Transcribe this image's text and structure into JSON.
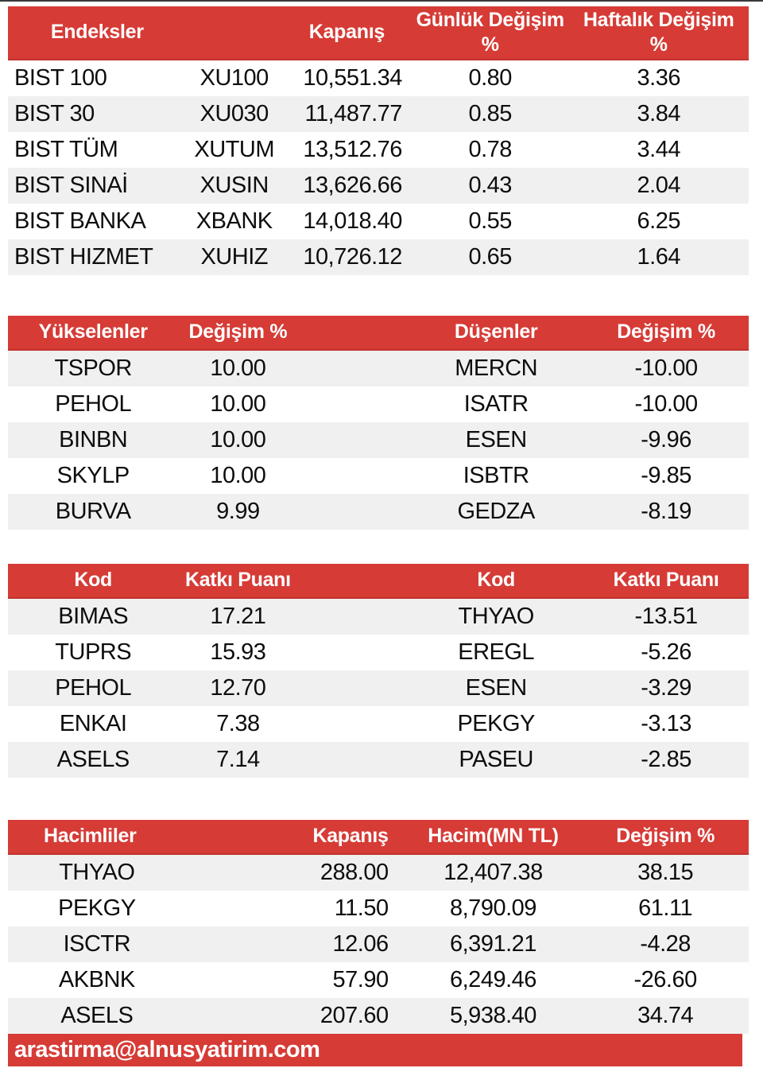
{
  "colors": {
    "header_red": "#d63b36",
    "row_alt_gray": "#f0f0f0",
    "header_text": "#ffffff",
    "body_text": "#0d0d0d"
  },
  "indices_table": {
    "headers": {
      "name": "Endeksler",
      "close": "Kapanış",
      "daily_l1": "Günlük Değişim",
      "daily_l2": "%",
      "weekly_l1": "Haftalık Değişim",
      "weekly_l2": "%"
    },
    "rows": [
      {
        "name": "BIST 100",
        "code": "XU100",
        "close": "10,551.34",
        "daily": "0.80",
        "weekly": "3.36"
      },
      {
        "name": "BIST 30",
        "code": "XU030",
        "close": "11,487.77",
        "daily": "0.85",
        "weekly": "3.84"
      },
      {
        "name": "BIST TÜM",
        "code": "XUTUM",
        "close": "13,512.76",
        "daily": "0.78",
        "weekly": "3.44"
      },
      {
        "name": "BIST SINAİ",
        "code": "XUSIN",
        "close": "13,626.66",
        "daily": "0.43",
        "weekly": "2.04"
      },
      {
        "name": "BIST BANKA",
        "code": "XBANK",
        "close": "14,018.40",
        "daily": "0.55",
        "weekly": "6.25"
      },
      {
        "name": "BIST HIZMET",
        "code": "XUHIZ",
        "close": "10,726.12",
        "daily": "0.65",
        "weekly": "1.64"
      }
    ]
  },
  "movers_table": {
    "headers": {
      "gainers": "Yükselenler",
      "gainers_change": "Değişim %",
      "losers": "Düşenler",
      "losers_change": "Değişim %"
    },
    "rows": [
      {
        "gainer": "TSPOR",
        "gainer_change": "10.00",
        "loser": "MERCN",
        "loser_change": "-10.00"
      },
      {
        "gainer": "PEHOL",
        "gainer_change": "10.00",
        "loser": "ISATR",
        "loser_change": "-10.00"
      },
      {
        "gainer": "BINBN",
        "gainer_change": "10.00",
        "loser": "ESEN",
        "loser_change": "-9.96"
      },
      {
        "gainer": "SKYLP",
        "gainer_change": "10.00",
        "loser": "ISBTR",
        "loser_change": "-9.85"
      },
      {
        "gainer": "BURVA",
        "gainer_change": "9.99",
        "loser": "GEDZA",
        "loser_change": "-8.19"
      }
    ]
  },
  "contribution_table": {
    "headers": {
      "pos_code": "Kod",
      "pos_points": "Katkı Puanı",
      "neg_code": "Kod",
      "neg_points": "Katkı Puanı"
    },
    "rows": [
      {
        "pos_code": "BIMAS",
        "pos_points": "17.21",
        "neg_code": "THYAO",
        "neg_points": "-13.51"
      },
      {
        "pos_code": "TUPRS",
        "pos_points": "15.93",
        "neg_code": "EREGL",
        "neg_points": "-5.26"
      },
      {
        "pos_code": "PEHOL",
        "pos_points": "12.70",
        "neg_code": "ESEN",
        "neg_points": "-3.29"
      },
      {
        "pos_code": "ENKAI",
        "pos_points": "7.38",
        "neg_code": "PEKGY",
        "neg_points": "-3.13"
      },
      {
        "pos_code": "ASELS",
        "pos_points": "7.14",
        "neg_code": "PASEU",
        "neg_points": "-2.85"
      }
    ]
  },
  "volume_table": {
    "headers": {
      "name": "Hacimliler",
      "close": "Kapanış",
      "volume": "Hacim(MN TL)",
      "change": "Değişim %"
    },
    "rows": [
      {
        "code": "THYAO",
        "close": "288.00",
        "volume": "12,407.38",
        "change": "38.15"
      },
      {
        "code": "PEKGY",
        "close": "11.50",
        "volume": "8,790.09",
        "change": "61.11"
      },
      {
        "code": "ISCTR",
        "close": "12.06",
        "volume": "6,391.21",
        "change": "-4.28"
      },
      {
        "code": "AKBNK",
        "close": "57.90",
        "volume": "6,249.46",
        "change": "-26.60"
      },
      {
        "code": "ASELS",
        "close": "207.60",
        "volume": "5,938.40",
        "change": "34.74"
      }
    ]
  },
  "footer": {
    "email": "arastirma@alnusyatirim.com"
  }
}
